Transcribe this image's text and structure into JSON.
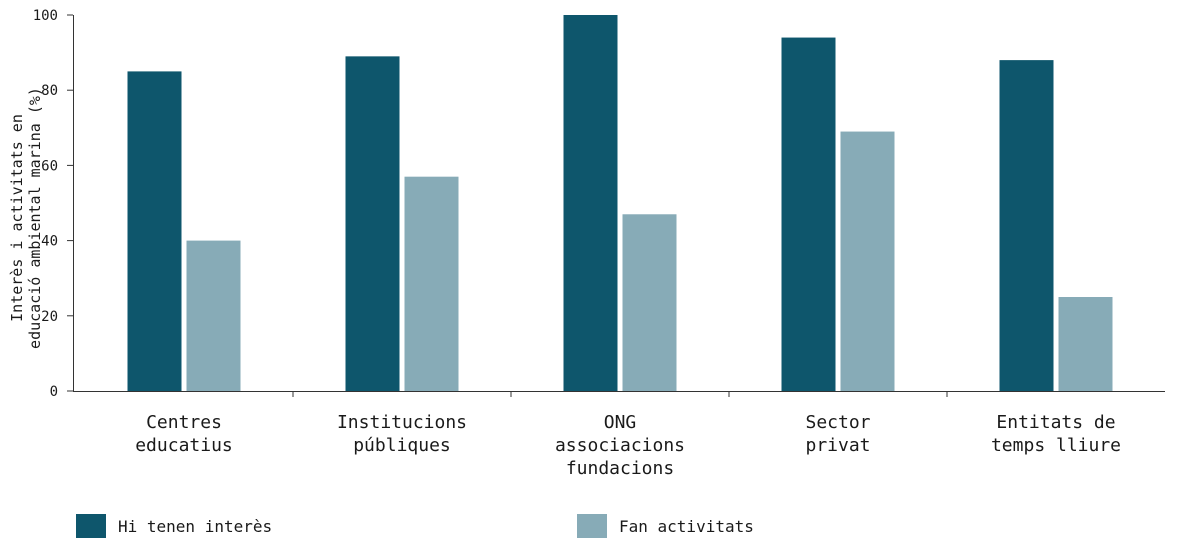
{
  "chart_data": {
    "type": "bar",
    "categories": [
      [
        "Centres",
        "educatius"
      ],
      [
        "Institucions",
        "públiques"
      ],
      [
        "ONG",
        "associacions",
        "fundacions"
      ],
      [
        "Sector",
        "privat"
      ],
      [
        "Entitats de",
        "temps lliure"
      ]
    ],
    "series": [
      {
        "name": "Hi tenen interès",
        "color": "#0e566c",
        "values": [
          85,
          89,
          100,
          94,
          88
        ]
      },
      {
        "name": "Fan activitats",
        "color": "#87abb7",
        "values": [
          40,
          57,
          47,
          69,
          25
        ]
      }
    ],
    "ylabel": [
      "Interès i activitats en",
      "educació ambiental marina (%)"
    ],
    "ylim": [
      0,
      100
    ],
    "yticks": [
      0,
      20,
      40,
      60,
      80,
      100
    ],
    "grid": false,
    "legend_position": "bottom"
  }
}
